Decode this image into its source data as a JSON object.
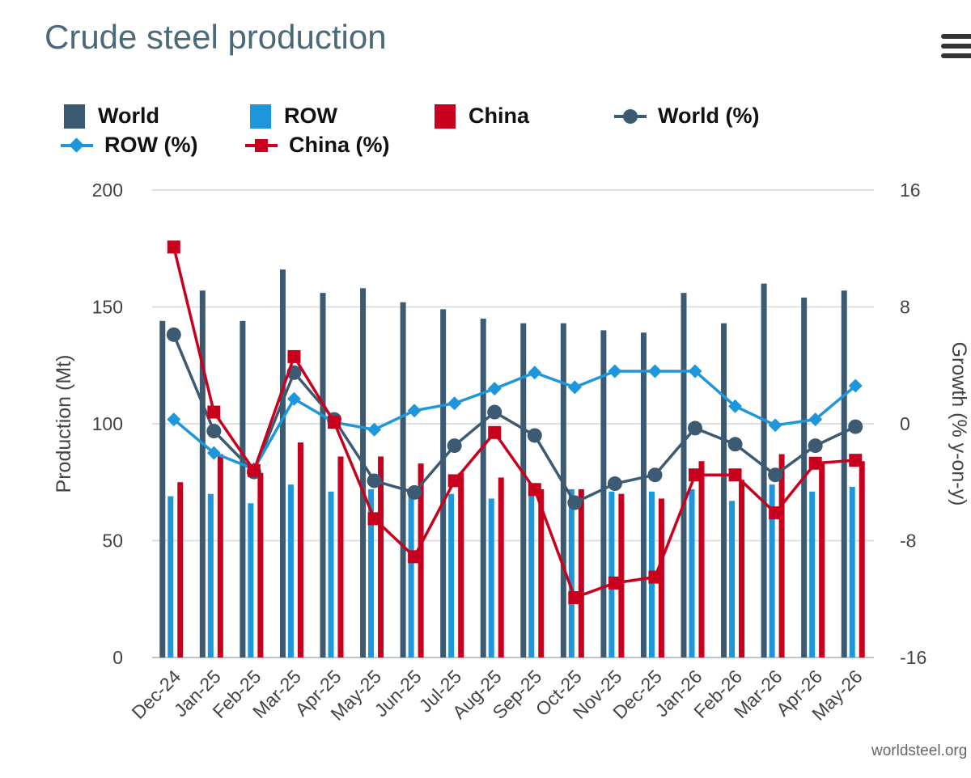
{
  "title": "Crude steel production",
  "source": "worldsteel.org",
  "menu_icon": "hamburger-menu-icon",
  "chart_data": {
    "type": "bar",
    "categories": [
      "Dec-24",
      "Jan-25",
      "Feb-25",
      "Mar-25",
      "Apr-25",
      "May-25",
      "Jun-25",
      "Jul-25",
      "Aug-25",
      "Sep-25",
      "Oct-25",
      "Nov-25",
      "Dec-25",
      "Jan-26",
      "Feb-26",
      "Mar-26",
      "Apr-26",
      "May-26"
    ],
    "ylabel": "Production (Mt)",
    "y2label": "Growth (% y-on-y)",
    "ylim": [
      0,
      200
    ],
    "y2lim": [
      -16,
      16
    ],
    "yticks": [
      "0",
      "50",
      "100",
      "150",
      "200"
    ],
    "y2ticks": [
      "-16",
      "-8",
      "0",
      "8",
      "16"
    ],
    "grid": true,
    "legend_position": "top",
    "series": [
      {
        "name": "World",
        "kind": "bar",
        "color": "#3d5a73",
        "values": [
          144,
          157,
          144,
          166,
          156,
          158,
          152,
          149,
          145,
          143,
          143,
          140,
          139,
          156,
          143,
          160,
          154,
          157
        ]
      },
      {
        "name": "ROW",
        "kind": "bar",
        "color": "#1e96dc",
        "values": [
          69,
          70,
          66,
          74,
          71,
          72,
          69,
          70,
          68,
          72,
          72,
          71,
          71,
          72,
          67,
          74,
          71,
          73
        ]
      },
      {
        "name": "China",
        "kind": "bar",
        "color": "#c8001e",
        "values": [
          75,
          87,
          79,
          92,
          86,
          86,
          83,
          79,
          77,
          72,
          72,
          70,
          68,
          84,
          76,
          87,
          83,
          84
        ]
      },
      {
        "name": "World (%)",
        "kind": "line",
        "axis": "right",
        "color": "#3d5a73",
        "marker": "circle",
        "values": [
          6.1,
          -0.5,
          -3.3,
          3.5,
          0.3,
          -3.9,
          -4.7,
          -1.5,
          0.8,
          -0.8,
          -5.4,
          -4.1,
          -3.5,
          -0.3,
          -1.4,
          -3.5,
          -1.5,
          -0.2
        ]
      },
      {
        "name": "ROW (%)",
        "kind": "line",
        "axis": "right",
        "color": "#1e96dc",
        "marker": "diamond",
        "values": [
          0.3,
          -2.0,
          -3.1,
          1.7,
          0.1,
          -0.4,
          0.9,
          1.4,
          2.4,
          3.5,
          2.5,
          3.6,
          3.6,
          3.6,
          1.2,
          -0.1,
          0.3,
          2.6
        ]
      },
      {
        "name": "China (%)",
        "kind": "line",
        "axis": "right",
        "color": "#c8001e",
        "marker": "square",
        "values": [
          12.1,
          0.8,
          -3.2,
          4.6,
          0.1,
          -6.5,
          -9.1,
          -3.9,
          -0.6,
          -4.5,
          -11.9,
          -10.9,
          -10.5,
          -3.5,
          -3.5,
          -6.1,
          -2.7,
          -2.5
        ]
      }
    ]
  }
}
